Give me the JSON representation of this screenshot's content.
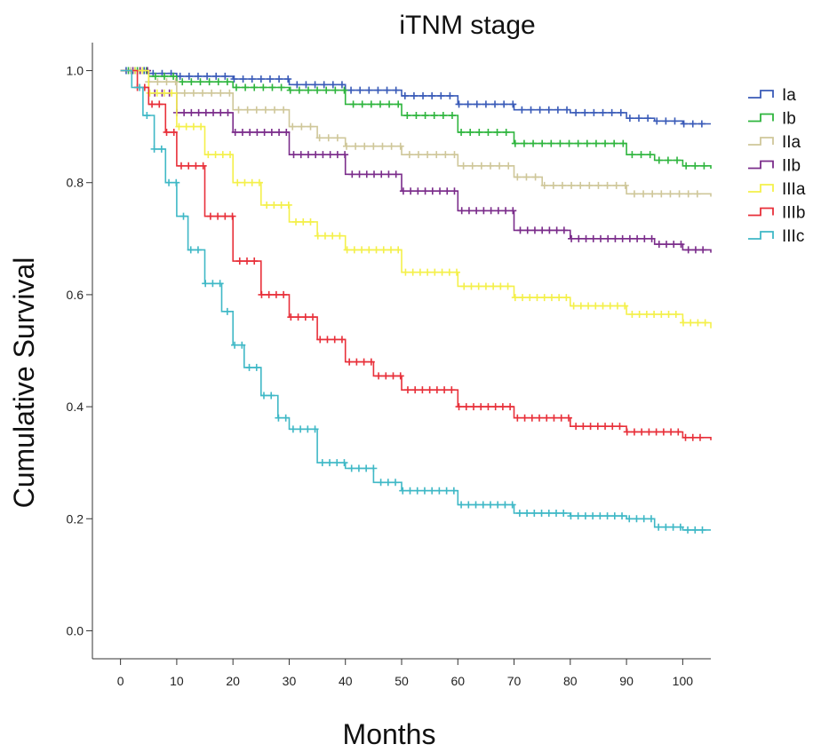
{
  "chart_data": {
    "type": "line",
    "subtype": "kaplan-meier-step",
    "title": "iTNM stage",
    "xlabel": "Months",
    "ylabel": "Cumulative Survival",
    "xlim": [
      -5,
      105
    ],
    "ylim": [
      -0.05,
      1.05
    ],
    "xticks": [
      0,
      10,
      20,
      30,
      40,
      50,
      60,
      70,
      80,
      90,
      100
    ],
    "yticks": [
      0.0,
      0.2,
      0.4,
      0.6,
      0.8,
      1.0
    ],
    "xtick_labels": [
      "0",
      "10",
      "20",
      "30",
      "40",
      "50",
      "60",
      "70",
      "80",
      "90",
      "100"
    ],
    "ytick_labels": [
      "0.0",
      "0.2",
      "0.4",
      "0.6",
      "0.8",
      "1.0"
    ],
    "grid": false,
    "legend_position": "top-right",
    "censor_marker": "+",
    "series": [
      {
        "name": "Ia",
        "color": "#3a5bb8",
        "x": [
          0,
          5,
          10,
          20,
          30,
          40,
          50,
          60,
          70,
          80,
          90,
          95,
          100,
          105
        ],
        "y": [
          1.0,
          0.995,
          0.99,
          0.985,
          0.975,
          0.965,
          0.955,
          0.94,
          0.93,
          0.925,
          0.915,
          0.91,
          0.905,
          0.905
        ]
      },
      {
        "name": "Ib",
        "color": "#2fb53e",
        "x": [
          0,
          5,
          10,
          20,
          30,
          40,
          50,
          60,
          70,
          80,
          90,
          95,
          100,
          105
        ],
        "y": [
          1.0,
          0.99,
          0.98,
          0.97,
          0.965,
          0.94,
          0.92,
          0.89,
          0.87,
          0.87,
          0.85,
          0.84,
          0.83,
          0.825
        ]
      },
      {
        "name": "IIa",
        "color": "#cfc79a",
        "x": [
          0,
          5,
          10,
          20,
          30,
          35,
          40,
          50,
          60,
          70,
          75,
          80,
          90,
          100,
          105
        ],
        "y": [
          1.0,
          0.98,
          0.96,
          0.93,
          0.9,
          0.88,
          0.865,
          0.85,
          0.83,
          0.81,
          0.795,
          0.795,
          0.78,
          0.78,
          0.775
        ]
      },
      {
        "name": "IIb",
        "color": "#7b2d8b",
        "x": [
          0,
          5,
          10,
          20,
          30,
          40,
          50,
          60,
          70,
          80,
          90,
          95,
          100,
          105
        ],
        "y": [
          1.0,
          0.96,
          0.925,
          0.89,
          0.85,
          0.815,
          0.785,
          0.75,
          0.715,
          0.7,
          0.7,
          0.69,
          0.68,
          0.675
        ]
      },
      {
        "name": "IIIa",
        "color": "#f4f04a",
        "x": [
          0,
          5,
          10,
          15,
          20,
          25,
          30,
          35,
          40,
          50,
          60,
          70,
          80,
          90,
          100,
          105
        ],
        "y": [
          1.0,
          0.96,
          0.9,
          0.85,
          0.8,
          0.76,
          0.73,
          0.705,
          0.68,
          0.64,
          0.615,
          0.595,
          0.58,
          0.565,
          0.55,
          0.54
        ]
      },
      {
        "name": "IIIb",
        "color": "#e8303a",
        "x": [
          0,
          3,
          5,
          8,
          10,
          15,
          20,
          25,
          30,
          35,
          40,
          45,
          50,
          60,
          70,
          80,
          90,
          100,
          105
        ],
        "y": [
          1.0,
          0.97,
          0.94,
          0.89,
          0.83,
          0.74,
          0.66,
          0.6,
          0.56,
          0.52,
          0.48,
          0.455,
          0.43,
          0.4,
          0.38,
          0.365,
          0.355,
          0.345,
          0.34
        ]
      },
      {
        "name": "IIIc",
        "color": "#3fb8c6",
        "x": [
          0,
          2,
          4,
          6,
          8,
          10,
          12,
          15,
          18,
          20,
          22,
          25,
          28,
          30,
          35,
          40,
          45,
          50,
          60,
          70,
          80,
          90,
          95,
          100,
          105
        ],
        "y": [
          1.0,
          0.97,
          0.92,
          0.86,
          0.8,
          0.74,
          0.68,
          0.62,
          0.57,
          0.51,
          0.47,
          0.42,
          0.38,
          0.36,
          0.3,
          0.29,
          0.265,
          0.25,
          0.225,
          0.21,
          0.205,
          0.2,
          0.185,
          0.18,
          0.18
        ]
      }
    ]
  }
}
